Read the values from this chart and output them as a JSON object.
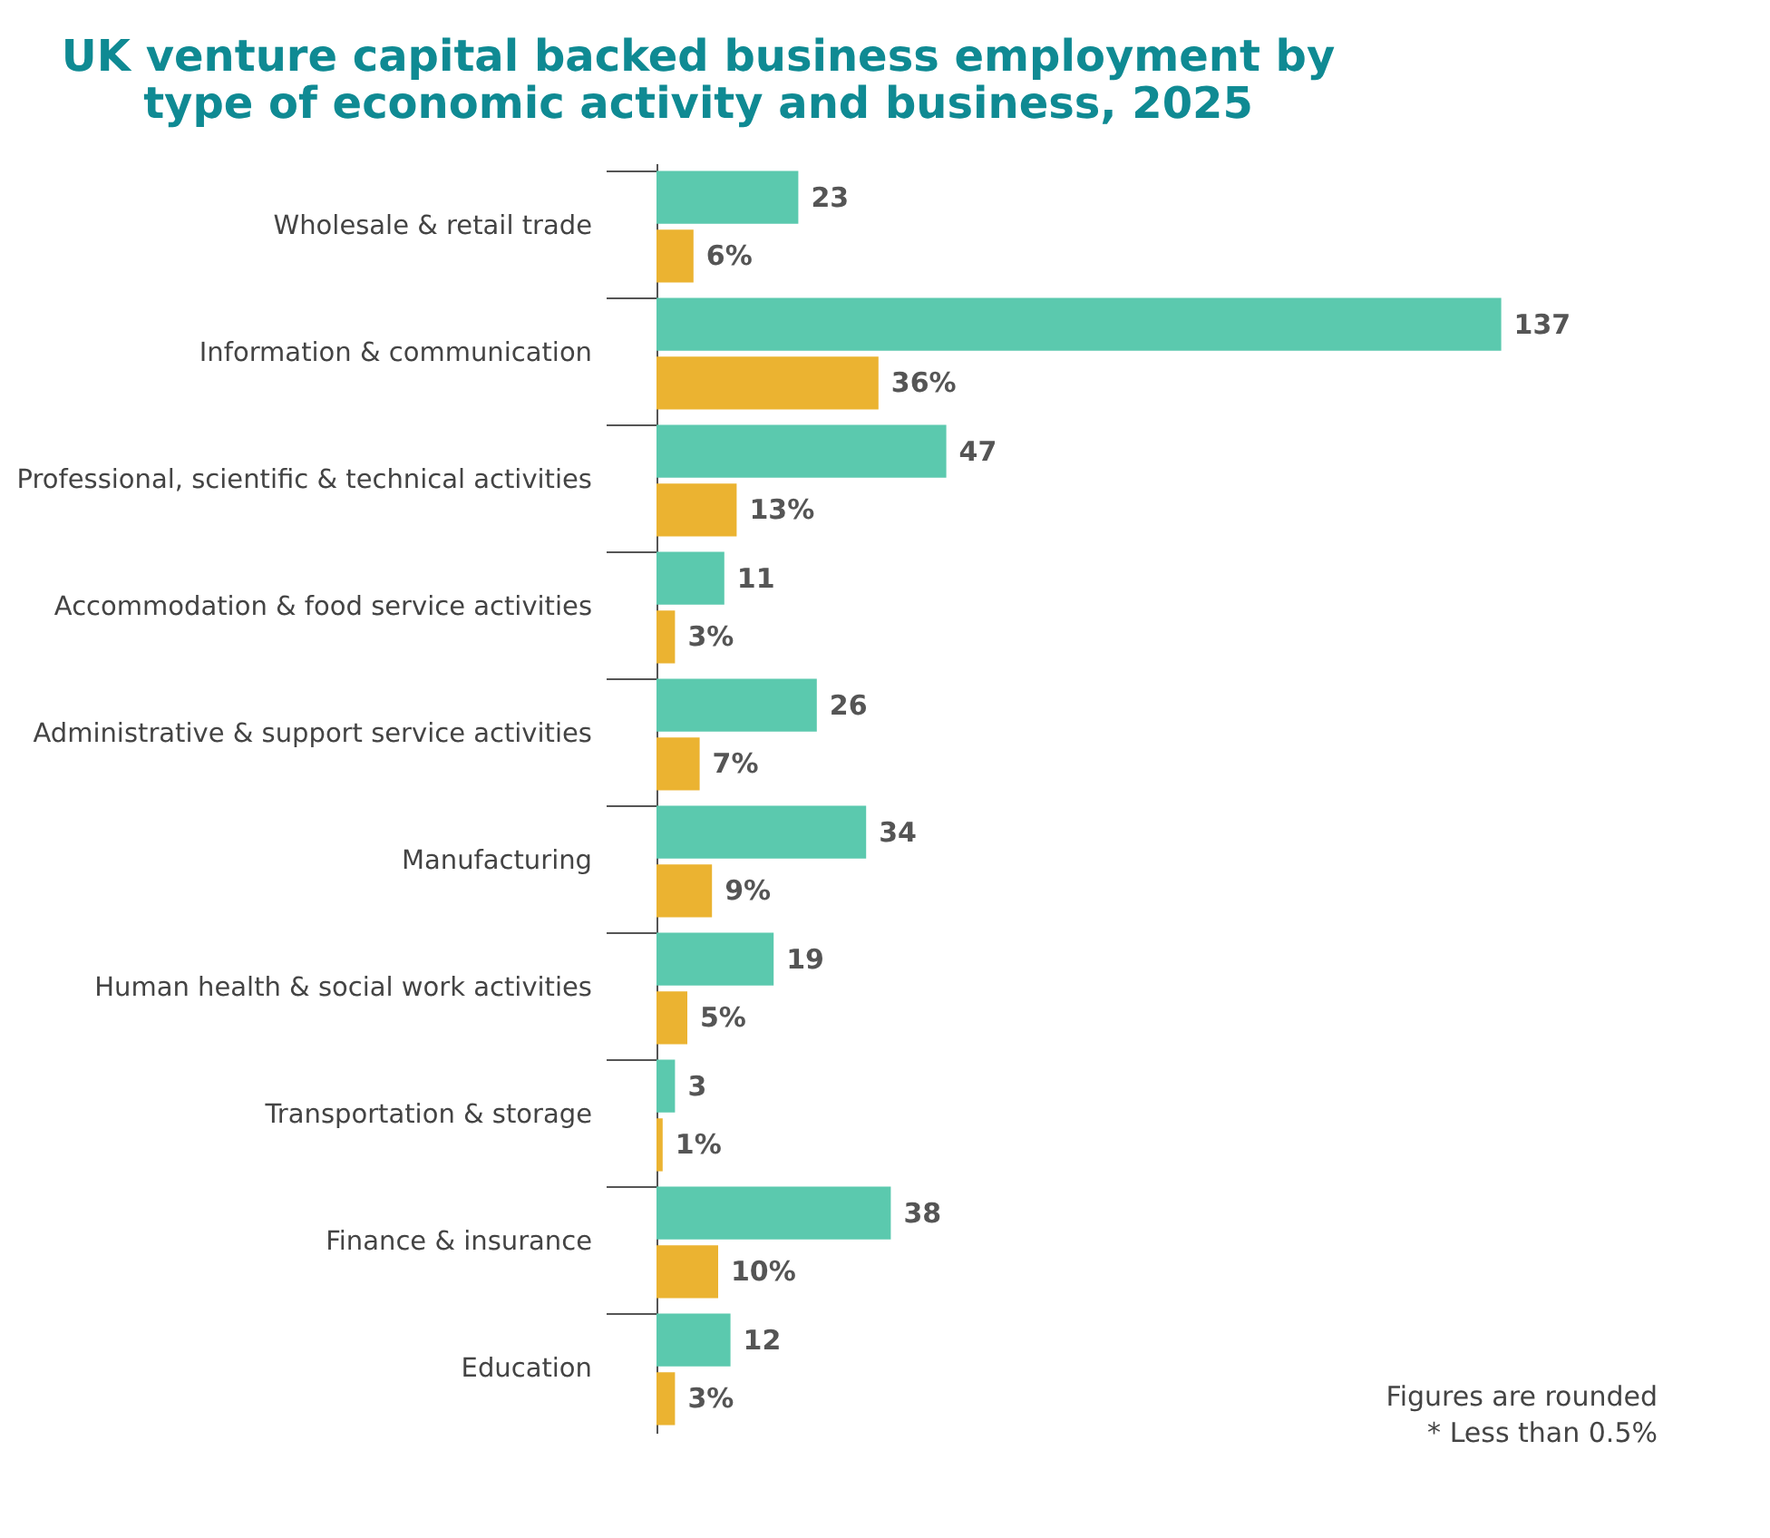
{
  "chart_data": {
    "type": "bar",
    "orientation": "horizontal",
    "title": "UK venture capital backed business employment by\ntype of economic activity and business, 2025",
    "categories": [
      "Wholesale & retail trade",
      "Information & communication",
      "Professional, scientific & technical activities",
      "Accommodation & food service activities",
      "Administrative & support service activities",
      "Manufacturing",
      "Human health & social work activities",
      "Transportation & storage",
      "Finance & insurance",
      "Education"
    ],
    "series": [
      {
        "color": "#5bc9ae",
        "values": [
          23,
          137,
          47,
          11,
          26,
          34,
          19,
          3,
          38,
          12
        ],
        "value_labels": [
          "23",
          "137",
          "47",
          "11",
          "26",
          "34",
          "19",
          "3",
          "38",
          "12"
        ]
      },
      {
        "color": "#ebb331",
        "values": [
          6,
          36,
          13,
          3,
          7,
          9,
          5,
          1,
          10,
          3
        ],
        "value_labels": [
          "6%",
          "36%",
          "13%",
          "3%",
          "7%",
          "9%",
          "5%",
          "1%",
          "10%",
          "3%"
        ]
      }
    ],
    "grid": false,
    "annotations": [
      "Figures are rounded",
      "* Less than 0.5%"
    ]
  }
}
